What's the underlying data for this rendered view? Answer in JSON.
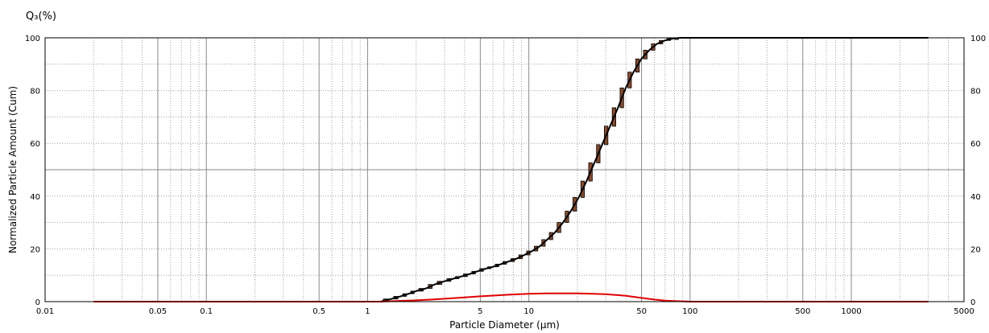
{
  "chart_data": {
    "type": "line",
    "corner_label": "Q₃(%)",
    "xlabel": "Particle Diameter (µm)",
    "ylabel": "Normalized Particle Amount (Cum)",
    "x_scale": "log",
    "xlim": [
      0.01,
      5000
    ],
    "ylim": [
      0,
      100
    ],
    "x_tick_labels": [
      {
        "v": 0.01,
        "t": "0.01"
      },
      {
        "v": 0.05,
        "t": "0.05"
      },
      {
        "v": 0.1,
        "t": "0.1"
      },
      {
        "v": 0.5,
        "t": "0.5"
      },
      {
        "v": 1,
        "t": "1"
      },
      {
        "v": 5,
        "t": "5"
      },
      {
        "v": 10,
        "t": "10"
      },
      {
        "v": 50,
        "t": "50"
      },
      {
        "v": 100,
        "t": "100"
      },
      {
        "v": 500,
        "t": "500"
      },
      {
        "v": 1000,
        "t": "1000"
      },
      {
        "v": 5000,
        "t": "5000"
      }
    ],
    "y_ticks": [
      0,
      20,
      40,
      60,
      80,
      100
    ],
    "grid": true,
    "colors": {
      "cumulative": "#000000",
      "bars": "#8a4a2a",
      "frequency": "#e00000"
    },
    "series": [
      {
        "key": "cumulative",
        "x": [
          1.2,
          1.4,
          1.6,
          1.8,
          2,
          2.3,
          2.6,
          3,
          3.4,
          3.8,
          4.3,
          4.8,
          5.4,
          6,
          6.7,
          7.5,
          8.4,
          9.4,
          10.5,
          11.7,
          13,
          14.5,
          16.3,
          18.2,
          20.4,
          22.8,
          25.5,
          28.5,
          31.9,
          35.7,
          39.9,
          44.6,
          49.9,
          55.8,
          62.4,
          69.8,
          78,
          87.2,
          97.5,
          109,
          150,
          300,
          1000,
          3000
        ],
        "y": [
          0,
          1,
          2,
          3,
          4,
          5,
          6.5,
          7.7,
          8.7,
          9.5,
          10.5,
          11.5,
          12.5,
          13.2,
          14.2,
          15.2,
          16.3,
          17.7,
          19.2,
          21,
          23.5,
          26.2,
          30,
          34.3,
          39.5,
          45.7,
          52.6,
          59.5,
          66.5,
          73.5,
          81,
          87,
          92,
          95.3,
          97.7,
          99,
          99.7,
          100,
          100,
          100,
          100,
          100,
          100,
          100
        ]
      },
      {
        "key": "frequency",
        "x": [
          0.02,
          0.5,
          1,
          1.2,
          1.5,
          2,
          2.5,
          3,
          4,
          5,
          6,
          8,
          10,
          13,
          16,
          20,
          25,
          30,
          35,
          40,
          45,
          50,
          60,
          70,
          80,
          100,
          200,
          1000,
          3000
        ],
        "y": [
          0,
          0,
          0,
          0,
          0.2,
          0.5,
          0.8,
          1.1,
          1.6,
          2.0,
          2.3,
          2.7,
          3.0,
          3.1,
          3.1,
          3.1,
          3.0,
          2.8,
          2.5,
          2.2,
          1.8,
          1.4,
          0.8,
          0.4,
          0.2,
          0,
          0,
          0,
          0
        ]
      }
    ]
  }
}
